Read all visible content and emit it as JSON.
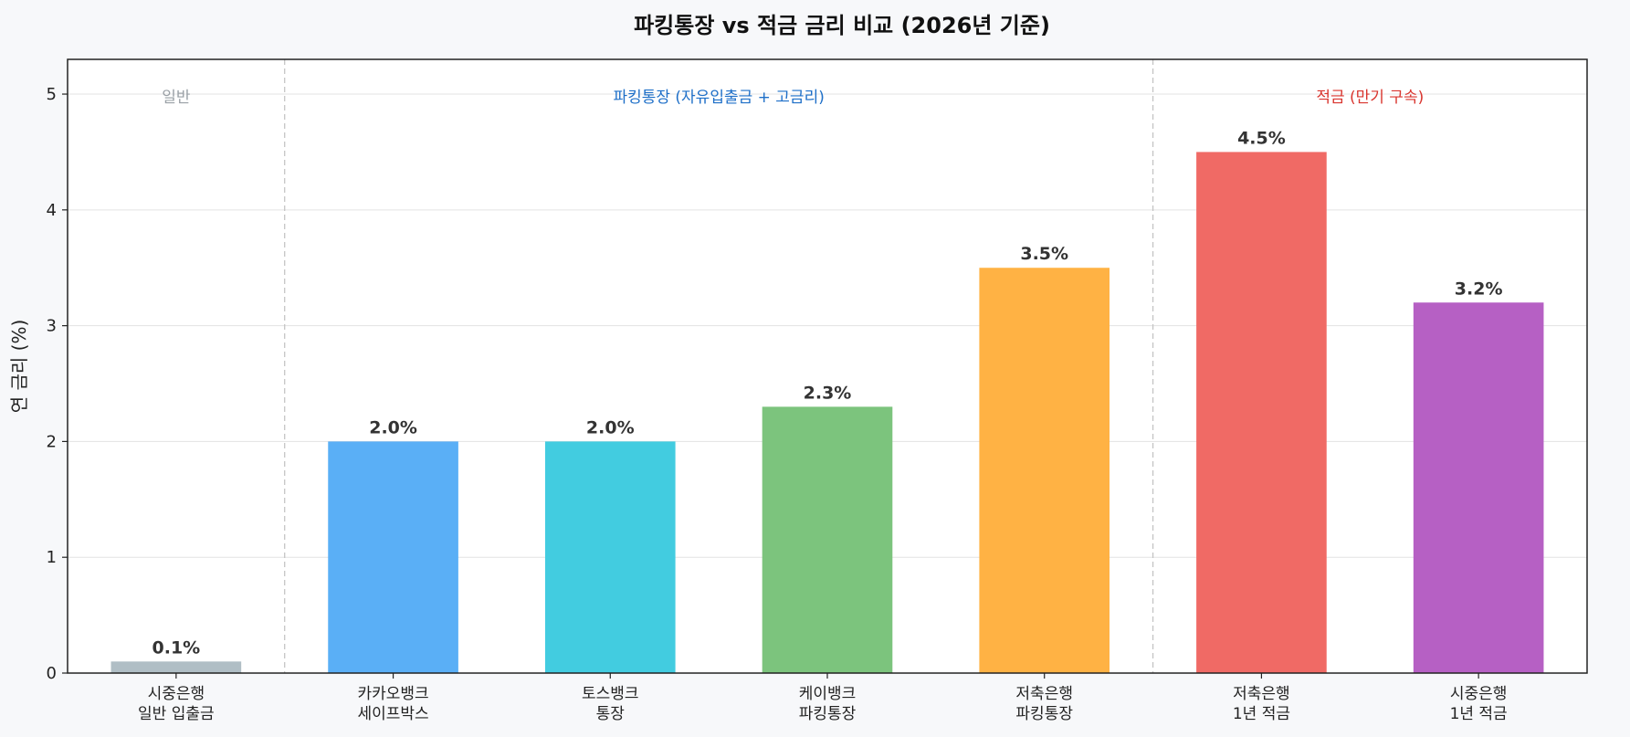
{
  "chart_data": {
    "type": "bar",
    "title": "파킹통장 vs 적금 금리 비교 (2026년 기준)",
    "ylabel": "연 금리 (%)",
    "xlabel": "",
    "ylim": [
      0,
      5.3
    ],
    "yticks": [
      0,
      1,
      2,
      3,
      4,
      5
    ],
    "grid": true,
    "categories": [
      [
        "시중은행",
        "일반 입출금"
      ],
      [
        "카카오뱅크",
        "세이프박스"
      ],
      [
        "토스뱅크",
        "통장"
      ],
      [
        "케이뱅크",
        "파킹통장"
      ],
      [
        "저축은행",
        "파킹통장"
      ],
      [
        "저축은행",
        "1년 적금"
      ],
      [
        "시중은행",
        "1년 적금"
      ]
    ],
    "values": [
      0.1,
      2.0,
      2.0,
      2.3,
      3.5,
      4.5,
      3.2
    ],
    "value_labels": [
      "0.1%",
      "2.0%",
      "2.0%",
      "2.3%",
      "3.5%",
      "4.5%",
      "3.2%"
    ],
    "colors": [
      "#b0bec5",
      "#5aaff6",
      "#42cce0",
      "#7cc47d",
      "#ffb244",
      "#f06a65",
      "#b660c4"
    ],
    "groups": [
      {
        "label": "일반",
        "start": 0,
        "end": 0,
        "color": "#9aa0a6"
      },
      {
        "label": "파킹통장 (자유입출금 + 고금리)",
        "start": 1,
        "end": 4,
        "color": "#1e6fc8"
      },
      {
        "label": "적금 (만기 구속)",
        "start": 5,
        "end": 6,
        "color": "#d9352e"
      }
    ],
    "dividers_after": [
      0,
      4
    ]
  }
}
